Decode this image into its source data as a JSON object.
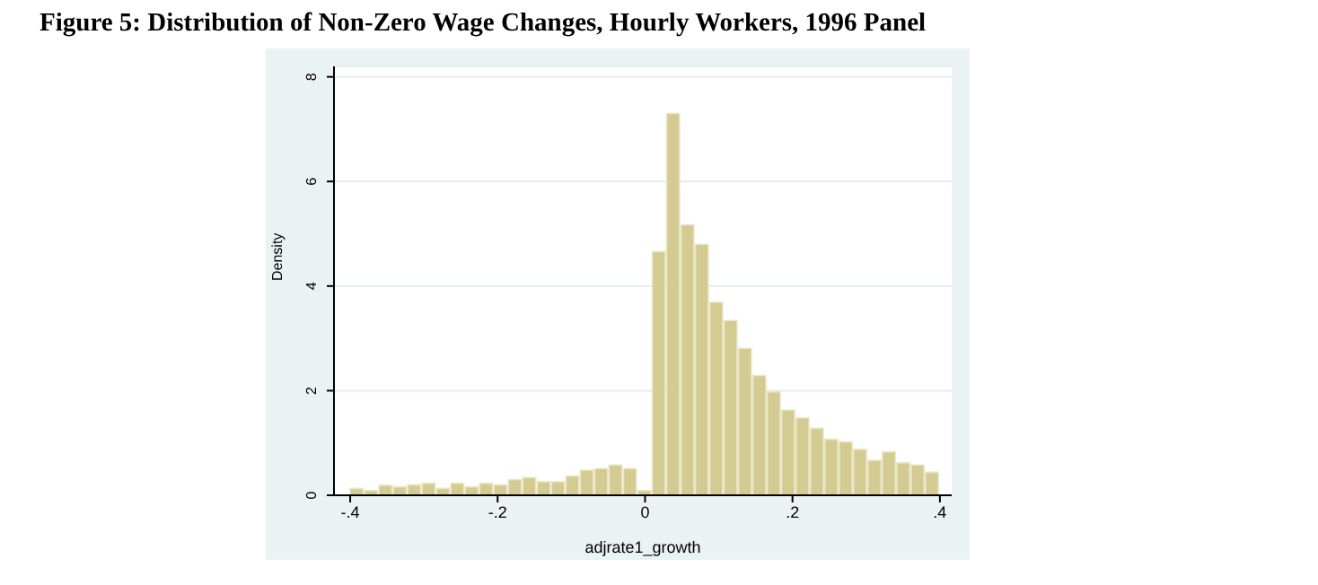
{
  "chart_data": {
    "type": "histogram",
    "title": "Figure 5: Distribution of Non-Zero Wage Changes, Hourly Workers, 1996 Panel",
    "xlabel": "adjrate1_growth",
    "ylabel": "Density",
    "bins": [
      -0.4,
      -0.3805,
      -0.361,
      -0.3415,
      -0.322,
      -0.3024,
      -0.2829,
      -0.2634,
      -0.2439,
      -0.2244,
      -0.2049,
      -0.1854,
      -0.1659,
      -0.1463,
      -0.1268,
      -0.1073,
      -0.0878,
      -0.0683,
      -0.0488,
      -0.0293,
      -0.0098,
      0.0098,
      0.0293,
      0.0488,
      0.0683,
      0.0878,
      0.1073,
      0.1268,
      0.1463,
      0.1659,
      0.1854,
      0.2049,
      0.2244,
      0.2439,
      0.2634,
      0.2829,
      0.3024,
      0.322,
      0.3415,
      0.361,
      0.3805,
      0.4
    ],
    "values": [
      0.13,
      0.09,
      0.19,
      0.16,
      0.2,
      0.23,
      0.13,
      0.23,
      0.16,
      0.23,
      0.2,
      0.3,
      0.34,
      0.26,
      0.26,
      0.37,
      0.48,
      0.51,
      0.58,
      0.51,
      0.09,
      4.66,
      7.3,
      5.17,
      4.8,
      3.69,
      3.34,
      2.81,
      2.29,
      1.98,
      1.63,
      1.48,
      1.28,
      1.07,
      1.02,
      0.88,
      0.67,
      0.83,
      0.62,
      0.58,
      0.44
    ],
    "color": "#d4cb93",
    "xlim": [
      -0.422,
      0.416
    ],
    "ylim": [
      0,
      8.2
    ],
    "xticks": [
      {
        "value": -0.4,
        "label": "-.4"
      },
      {
        "value": -0.2,
        "label": "-.2"
      },
      0,
      {
        "value": 0.2,
        "label": ".2"
      },
      {
        "value": 0.4,
        "label": ".4"
      }
    ],
    "yticks": [
      0,
      2,
      4,
      6,
      8
    ],
    "grid": "y"
  }
}
